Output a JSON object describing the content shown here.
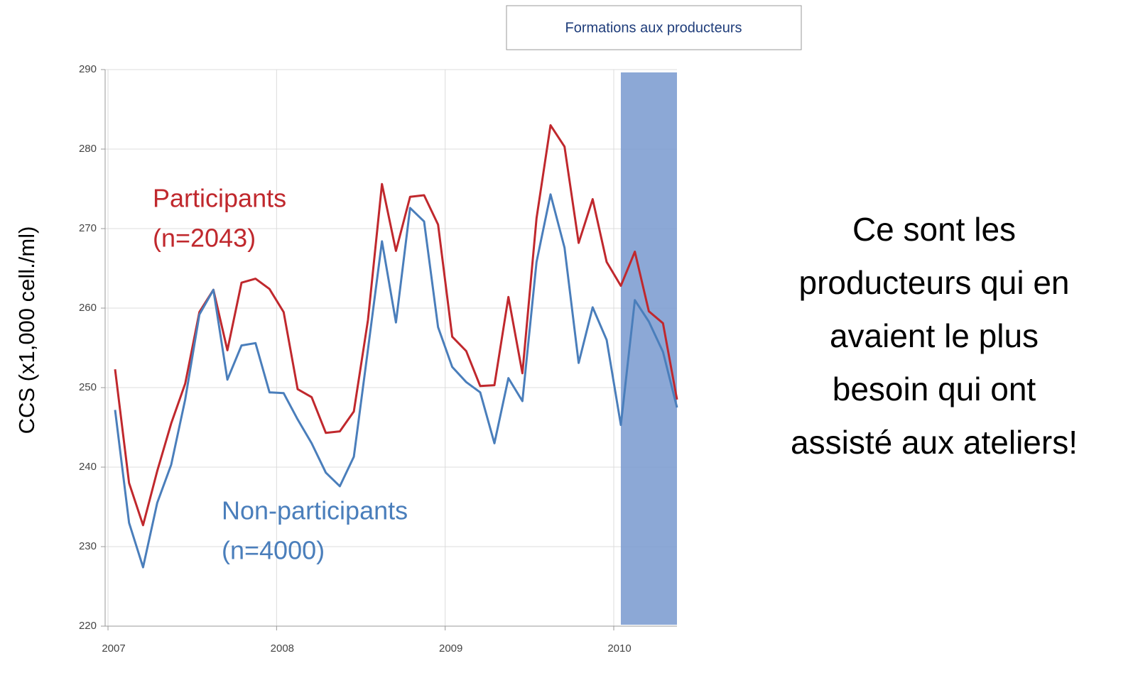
{
  "chart_data": {
    "type": "line",
    "y_label": "CCS (x1,000 cell./ml)",
    "x": [
      2007.042,
      2007.125,
      2007.208,
      2007.292,
      2007.375,
      2007.458,
      2007.542,
      2007.625,
      2007.708,
      2007.792,
      2007.875,
      2007.958,
      2008.042,
      2008.125,
      2008.208,
      2008.292,
      2008.375,
      2008.458,
      2008.542,
      2008.625,
      2008.708,
      2008.792,
      2008.875,
      2008.958,
      2009.042,
      2009.125,
      2009.208,
      2009.292,
      2009.375,
      2009.458,
      2009.542,
      2009.625,
      2009.708,
      2009.792,
      2009.875,
      2009.958,
      2010.042,
      2010.125,
      2010.208,
      2010.292,
      2010.375
    ],
    "series": [
      {
        "name": "Participants",
        "n_label": "(n=2043)",
        "color": "#c0282d",
        "values": [
          252.3,
          238,
          232.7,
          239.5,
          245.5,
          250.5,
          259.5,
          262.3,
          254.7,
          263.2,
          263.7,
          262.4,
          259.5,
          249.8,
          248.8,
          244.3,
          244.5,
          247,
          258.5,
          275.6,
          267.2,
          274,
          274.2,
          270.5,
          256.4,
          254.6,
          250.2,
          250.3,
          261.4,
          251.8,
          271.3,
          283,
          280.3,
          268.2,
          273.7,
          265.8,
          262.8,
          267.1,
          259.6,
          258.1,
          248.5
        ]
      },
      {
        "name": "Non-participants",
        "n_label": "(n=4000)",
        "color": "#4a7ebb",
        "values": [
          247.2,
          233,
          227.4,
          235.5,
          240.3,
          248.5,
          259.2,
          262.3,
          251,
          255.3,
          255.6,
          249.4,
          249.3,
          246,
          243,
          239.3,
          237.6,
          241.3,
          254.8,
          268.4,
          258.2,
          272.6,
          270.9,
          257.6,
          252.6,
          250.7,
          249.4,
          243,
          251.2,
          248.3,
          265.8,
          274.3,
          267.6,
          253.1,
          260.1,
          256,
          245.3,
          261,
          258.3,
          254.5,
          247.5
        ]
      }
    ],
    "xlim": [
      2006.983,
      2010.375
    ],
    "xticks": [
      2007,
      2008,
      2009,
      2010
    ],
    "ylim": [
      220,
      290
    ],
    "yticks": [
      220,
      230,
      240,
      250,
      260,
      270,
      280,
      290
    ],
    "grid": true,
    "highlight": {
      "label": "Formations aux producteurs",
      "xlim": [
        2010.042,
        2010.375
      ],
      "color": "#7f9fd1"
    },
    "side_text": [
      "Ce sont les",
      "producteurs qui en",
      "avaient le plus",
      "besoin qui ont",
      "assisté aux ateliers!"
    ]
  }
}
